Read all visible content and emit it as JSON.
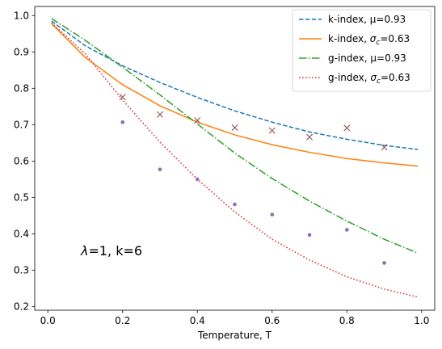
{
  "chart_data": {
    "type": "line",
    "xlabel": "Temperature, T",
    "ylabel": "",
    "title": "",
    "xlim": [
      -0.035,
      1.035
    ],
    "ylim": [
      0.19,
      1.025
    ],
    "xticks": [
      0.0,
      0.2,
      0.4,
      0.6,
      0.8,
      1.0
    ],
    "xtick_labels": [
      "0.0",
      "0.2",
      "0.4",
      "0.6",
      "0.8",
      "1.0"
    ],
    "yticks": [
      0.2,
      0.3,
      0.4,
      0.5,
      0.6,
      0.7,
      0.8,
      0.9,
      1.0
    ],
    "ytick_labels": [
      "0.2",
      "0.3",
      "0.4",
      "0.5",
      "0.6",
      "0.7",
      "0.8",
      "0.9",
      "1.0"
    ],
    "grid": false,
    "legend_position": "top-right",
    "annotation": {
      "prefix": "λ",
      "rest": "=1, k=6"
    },
    "series": [
      {
        "legend_plain": "k-index, μ=0.93",
        "legend_prefix": "k-index, ",
        "legend_symbol": "μ",
        "legend_sub": "",
        "legend_suffix": "=0.93",
        "color": "#1f77b4",
        "style": "dashed",
        "x": [
          0.01,
          0.1,
          0.2,
          0.3,
          0.4,
          0.5,
          0.6,
          0.7,
          0.8,
          0.9,
          0.99
        ],
        "y": [
          0.985,
          0.917,
          0.862,
          0.816,
          0.775,
          0.738,
          0.707,
          0.68,
          0.66,
          0.643,
          0.632
        ]
      },
      {
        "legend_plain": "k-index, σc=0.63",
        "legend_prefix": "k-index, ",
        "legend_symbol": "σ",
        "legend_sub": "c",
        "legend_suffix": "=0.63",
        "color": "#ff7f0e",
        "style": "solid",
        "x": [
          0.01,
          0.1,
          0.2,
          0.3,
          0.4,
          0.5,
          0.6,
          0.7,
          0.8,
          0.9,
          0.99
        ],
        "y": [
          0.978,
          0.885,
          0.81,
          0.752,
          0.707,
          0.672,
          0.645,
          0.624,
          0.607,
          0.595,
          0.586
        ]
      },
      {
        "legend_plain": "g-index, μ=0.93",
        "legend_prefix": "g-index, ",
        "legend_symbol": "μ",
        "legend_sub": "",
        "legend_suffix": "=0.93",
        "color": "#2ca02c",
        "style": "dashdot",
        "x": [
          0.01,
          0.1,
          0.2,
          0.3,
          0.4,
          0.5,
          0.6,
          0.7,
          0.8,
          0.9,
          0.99
        ],
        "y": [
          0.992,
          0.932,
          0.858,
          0.782,
          0.702,
          0.622,
          0.552,
          0.49,
          0.435,
          0.385,
          0.347
        ]
      },
      {
        "legend_plain": "g-index, σc=0.63",
        "legend_prefix": "g-index, ",
        "legend_symbol": "σ",
        "legend_sub": "c",
        "legend_suffix": "=0.63",
        "color": "#d62728",
        "style": "dotted",
        "x": [
          0.01,
          0.1,
          0.2,
          0.3,
          0.4,
          0.5,
          0.6,
          0.7,
          0.8,
          0.9,
          0.99
        ],
        "y": [
          0.98,
          0.895,
          0.768,
          0.652,
          0.55,
          0.46,
          0.385,
          0.328,
          0.282,
          0.248,
          0.226
        ]
      }
    ],
    "markers": [
      {
        "shape": "x",
        "color": "#8c564b",
        "x": [
          0.2,
          0.3,
          0.4,
          0.5,
          0.6,
          0.7,
          0.8,
          0.9
        ],
        "y": [
          0.776,
          0.728,
          0.712,
          0.692,
          0.684,
          0.666,
          0.691,
          0.638
        ]
      },
      {
        "shape": "dot",
        "color": "#9467bd",
        "x": [
          0.2,
          0.3,
          0.4,
          0.5,
          0.6,
          0.7,
          0.8,
          0.9
        ],
        "y": [
          0.707,
          0.577,
          0.55,
          0.481,
          0.453,
          0.397,
          0.411,
          0.32
        ]
      }
    ]
  }
}
